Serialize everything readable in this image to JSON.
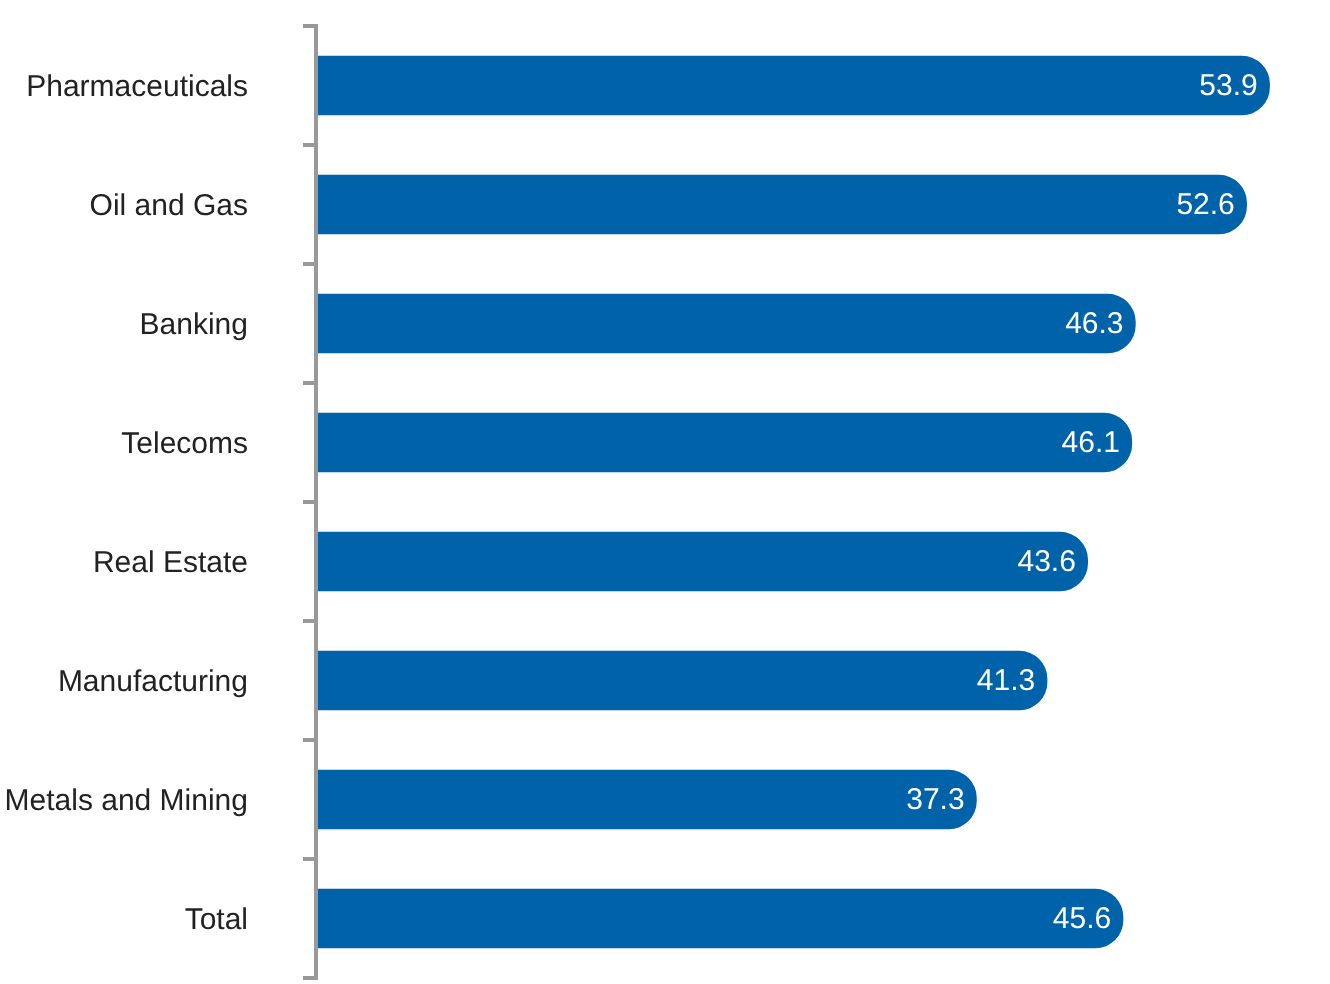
{
  "chart_data": {
    "type": "bar",
    "orientation": "horizontal",
    "categories": [
      "Pharmaceuticals",
      "Oil and Gas",
      "Banking",
      "Telecoms",
      "Real Estate",
      "Manufacturing",
      "Metals and Mining",
      "Total"
    ],
    "values": [
      53.9,
      52.6,
      46.3,
      46.1,
      43.6,
      41.3,
      37.3,
      45.6
    ],
    "color": "#0062a8",
    "data_labels": true,
    "tick_labels": "y",
    "legend": false
  }
}
